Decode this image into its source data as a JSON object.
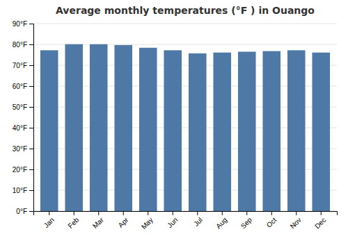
{
  "chart_data": {
    "type": "bar",
    "title": "Average monthly temperatures (°F ) in Ouango",
    "categories": [
      "Jan",
      "Feb",
      "Mar",
      "Apr",
      "May",
      "Jun",
      "Jul",
      "Aug",
      "Sep",
      "Oct",
      "Nov",
      "Dec"
    ],
    "values": [
      77.2,
      80.1,
      80.1,
      79.7,
      78.4,
      77.2,
      75.7,
      76.1,
      76.5,
      76.8,
      77.2,
      76.1
    ],
    "ylim": [
      0,
      90
    ],
    "yticks": [
      {
        "value": 0,
        "label": "0°F"
      },
      {
        "value": 10,
        "label": "10°F"
      },
      {
        "value": 20,
        "label": "20°F"
      },
      {
        "value": 30,
        "label": "30°F"
      },
      {
        "value": 40,
        "label": "40°F"
      },
      {
        "value": 50,
        "label": "50°F"
      },
      {
        "value": 60,
        "label": "60°F"
      },
      {
        "value": 70,
        "label": "70°F"
      },
      {
        "value": 80,
        "label": "80°F"
      },
      {
        "value": 90,
        "label": "90°F"
      }
    ],
    "grid": true
  }
}
